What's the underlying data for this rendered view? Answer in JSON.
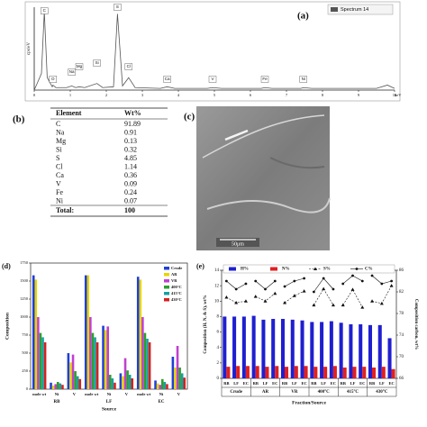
{
  "chart_data": [
    {
      "type": "line",
      "label": "(a)",
      "ylabel": "cps/eV",
      "xlabel": "keV",
      "x": [
        0,
        0.2,
        0.28,
        0.36,
        0.5,
        0.52,
        0.6,
        0.9,
        1.04,
        1.15,
        1.25,
        1.4,
        1.74,
        1.9,
        2.2,
        2.31,
        2.45,
        2.62,
        2.8,
        3.5,
        3.69,
        3.9,
        4.8,
        4.95,
        5.2,
        6.3,
        6.4,
        6.6,
        7.4,
        7.47,
        7.7,
        8.5,
        9.5,
        9.8,
        10
      ],
      "series": [
        {
          "name": "Spectrum 14",
          "color": "#555555",
          "values": [
            0,
            20,
            95,
            15,
            4,
            6,
            3,
            3,
            5,
            3,
            4,
            3,
            8,
            3,
            4,
            92,
            5,
            15,
            3,
            2,
            4,
            2,
            2,
            3,
            2,
            2,
            3,
            2,
            2,
            3,
            2,
            2,
            2,
            6,
            2
          ]
        }
      ],
      "peaks": [
        {
          "label": "C",
          "energy": 0.28
        },
        {
          "label": "O",
          "energy": 0.52
        },
        {
          "label": "Na",
          "energy": 1.04
        },
        {
          "label": "Mg",
          "energy": 1.25
        },
        {
          "label": "Si",
          "energy": 1.74
        },
        {
          "label": "S",
          "energy": 2.31
        },
        {
          "label": "Cl",
          "energy": 2.62
        },
        {
          "label": "Ca",
          "energy": 3.69
        },
        {
          "label": "V",
          "energy": 4.95
        },
        {
          "label": "Fe",
          "energy": 6.4
        },
        {
          "label": "Ni",
          "energy": 7.47
        }
      ],
      "xlim": [
        0,
        10
      ],
      "ylim": [
        0,
        100
      ],
      "xticks": [
        0,
        1,
        2,
        3,
        4,
        5,
        6,
        7,
        8,
        9,
        10
      ]
    },
    {
      "type": "bar",
      "label": "(d)",
      "ylabel": "Composition",
      "xlabel": "Source",
      "categories": [
        "mole wt",
        "Ni",
        "V",
        "mole wt",
        "Ni",
        "V",
        "mole wt",
        "Ni",
        "V"
      ],
      "groups": [
        "RB",
        "LF",
        "EC"
      ],
      "series": [
        {
          "name": "Crude",
          "color": "#1f3fd6",
          "values": [
            1580,
            90,
            500,
            1580,
            880,
            220,
            1560,
            120,
            450
          ]
        },
        {
          "name": "AR",
          "color": "#e8d400",
          "values": [
            1520,
            50,
            370,
            1580,
            820,
            180,
            1520,
            80,
            300
          ]
        },
        {
          "name": "VR",
          "color": "#c040d0",
          "values": [
            1000,
            70,
            480,
            1000,
            870,
            430,
            1000,
            60,
            600
          ]
        },
        {
          "name": "400°C",
          "color": "#2ca02c",
          "values": [
            780,
            100,
            250,
            780,
            200,
            260,
            780,
            140,
            300
          ]
        },
        {
          "name": "415°C",
          "color": "#17a0a0",
          "values": [
            720,
            80,
            180,
            720,
            150,
            200,
            700,
            100,
            220
          ]
        },
        {
          "name": "430°C",
          "color": "#d62020",
          "values": [
            650,
            60,
            140,
            650,
            90,
            150,
            650,
            70,
            160
          ]
        }
      ],
      "ylim": [
        0,
        1750
      ],
      "yticks": [
        0,
        250,
        500,
        750,
        1000,
        1250,
        1500,
        1750
      ]
    },
    {
      "type": "bar-line",
      "label": "(e)",
      "ylabel": "Composition (H, N, & S), wt%",
      "y2label": "Composition carbon, wt%",
      "xlabel": "Fraction/Source",
      "categories": [
        "RB",
        "LF",
        "EC",
        "RB",
        "LF",
        "EC",
        "RB",
        "LF",
        "EC",
        "RB",
        "LF",
        "EC",
        "RB",
        "LF",
        "EC",
        "RB",
        "LF",
        "EC"
      ],
      "groups": [
        "Crude",
        "AR",
        "VR",
        "400°C",
        "415°C",
        "430°C"
      ],
      "series": [
        {
          "name": "H%",
          "kind": "bar",
          "color": "#1f1fd0",
          "values": [
            8,
            8,
            8,
            8.1,
            7.6,
            7.7,
            7.7,
            7.6,
            7.5,
            7.3,
            7.3,
            7.4,
            7.2,
            7,
            7,
            6.9,
            6.9,
            5.2
          ]
        },
        {
          "name": "N%",
          "kind": "bar",
          "color": "#e02020",
          "values": [
            1.5,
            1.6,
            1.6,
            1.6,
            1.5,
            1.6,
            1.5,
            1.6,
            1.6,
            1.5,
            1.5,
            1.6,
            1.4,
            1.5,
            1.5,
            1.4,
            1.5,
            1.2
          ]
        },
        {
          "name": "S%",
          "kind": "line",
          "marker": "triangle",
          "dashed": true,
          "color": "#111111",
          "values": [
            10.5,
            9.8,
            10,
            10.6,
            10,
            11,
            9.8,
            10.7,
            11.3,
            9.5,
            11.6,
            9.5,
            9.5,
            11.5,
            9.2,
            10,
            9.7,
            12
          ]
        },
        {
          "name": "C%",
          "kind": "line",
          "marker": "circle",
          "dashed": false,
          "axis": "y2",
          "color": "#111111",
          "values": [
            84,
            82.5,
            83.5,
            84,
            82.5,
            84,
            83,
            84,
            84.5,
            82,
            84.5,
            82.5,
            83.5,
            85,
            84,
            85,
            83.5,
            84
          ]
        }
      ],
      "ylim": [
        0,
        14
      ],
      "yticks": [
        0,
        2,
        4,
        6,
        8,
        10,
        12,
        14
      ],
      "y2lim": [
        66,
        86
      ],
      "y2ticks": [
        66,
        70,
        74,
        78,
        82,
        86
      ]
    }
  ],
  "table": {
    "label": "(b)",
    "header": [
      "Element",
      "Wt%"
    ],
    "rows": [
      [
        "C",
        "91.89"
      ],
      [
        "Na",
        "0.91"
      ],
      [
        "Mg",
        "0.13"
      ],
      [
        "Si",
        "0.32"
      ],
      [
        "S",
        "4.85"
      ],
      [
        "Cl",
        "1.14"
      ],
      [
        "Ca",
        "0.36"
      ],
      [
        "V",
        "0.09"
      ],
      [
        "Fe",
        "0.24"
      ],
      [
        "Ni",
        "0.07"
      ]
    ],
    "total": [
      "Total:",
      "100"
    ]
  },
  "image": {
    "label": "(c)",
    "scale_bar": "50μm"
  }
}
